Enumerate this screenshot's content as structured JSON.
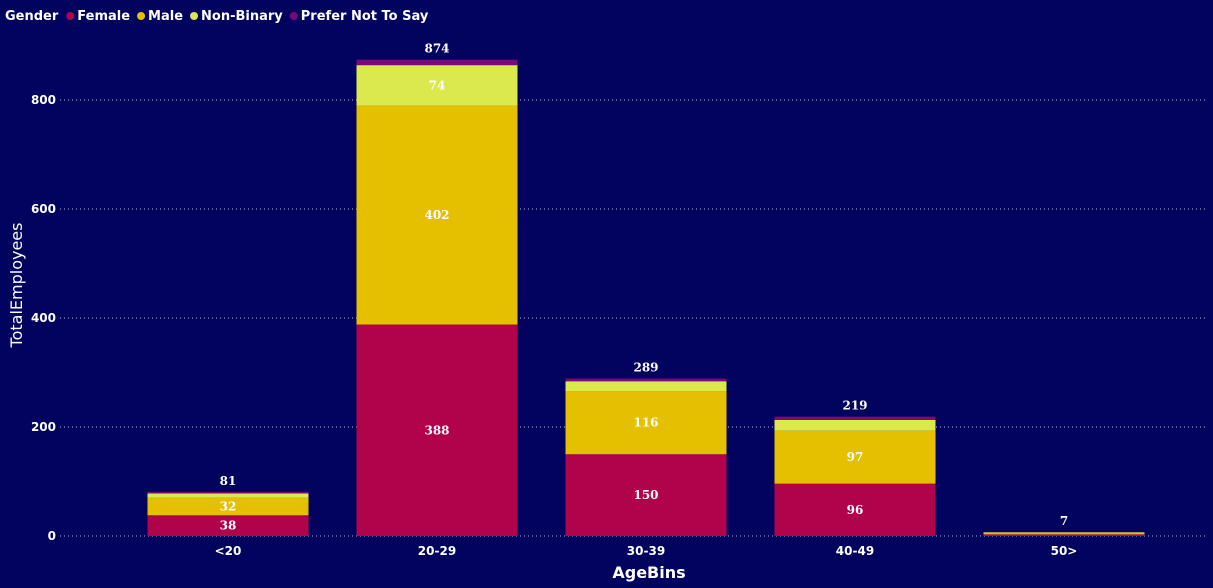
{
  "chart_data": {
    "type": "bar",
    "stacked": true,
    "legend_title": "Gender",
    "legend_position": "top-left",
    "categories": [
      "<20",
      "20-29",
      "30-39",
      "40-49",
      "50>"
    ],
    "series": [
      {
        "name": "Female",
        "color": "#b1034c",
        "values": [
          38,
          388,
          150,
          96,
          3
        ],
        "labels": [
          "38",
          "388",
          "150",
          "96",
          ""
        ]
      },
      {
        "name": "Male",
        "color": "#e4c000",
        "values": [
          32,
          402,
          116,
          97,
          3
        ],
        "labels": [
          "32",
          "402",
          "116",
          "97",
          ""
        ]
      },
      {
        "name": "Non-Binary",
        "color": "#dbe84e",
        "values": [
          8,
          74,
          18,
          20,
          1
        ],
        "labels": [
          "",
          "74",
          "",
          "",
          ""
        ]
      },
      {
        "name": "Prefer Not To Say",
        "color": "#7a0a78",
        "values": [
          3,
          10,
          5,
          6,
          0
        ],
        "labels": [
          "",
          "",
          "",
          "",
          ""
        ]
      }
    ],
    "totals": [
      "81",
      "874",
      "289",
      "219",
      "7"
    ],
    "xlabel": "AgeBins",
    "ylabel": "TotalEmployees",
    "ylim": [
      0,
      874
    ],
    "yticks": [
      0,
      200,
      400,
      600,
      800
    ],
    "ytick_labels": [
      "0",
      "200",
      "400",
      "600",
      "800"
    ],
    "grid": true
  }
}
